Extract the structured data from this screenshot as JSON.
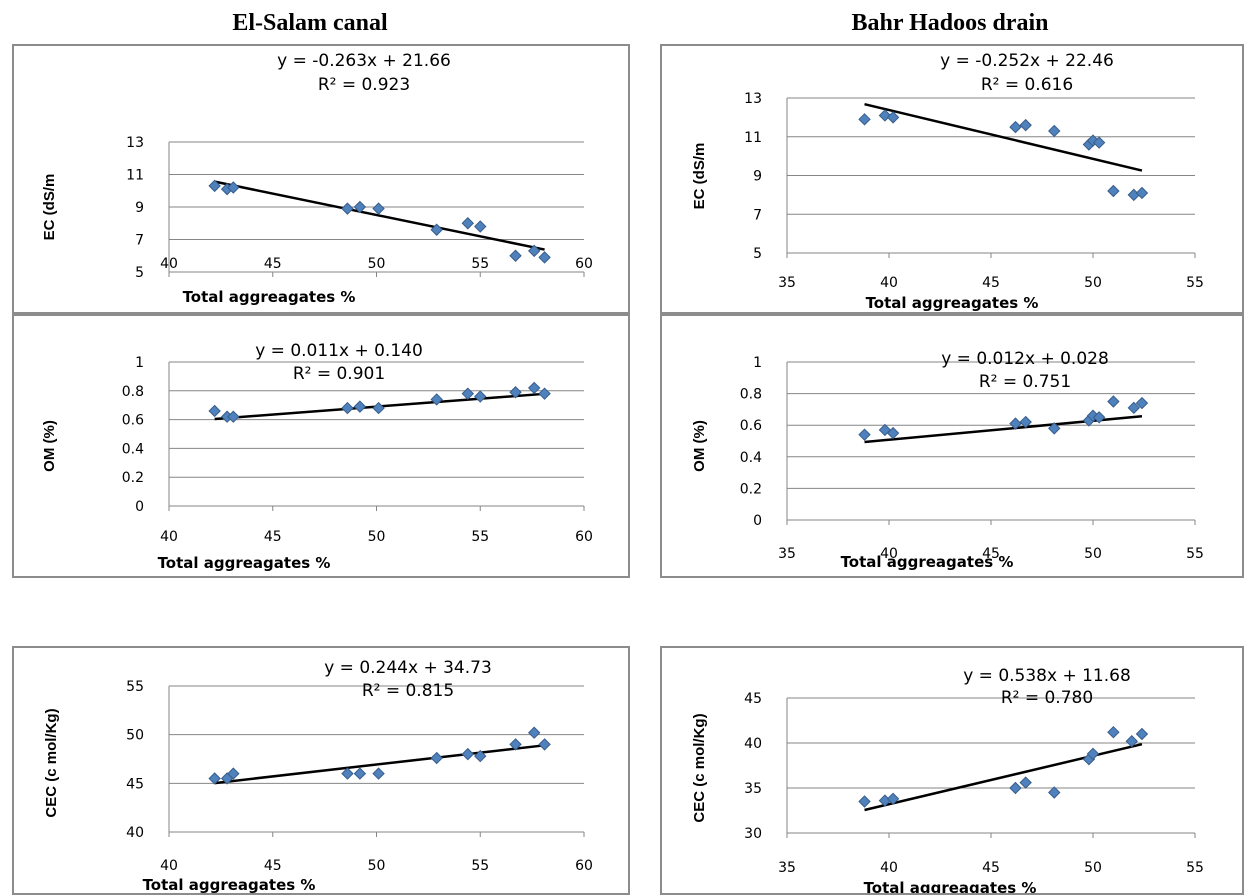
{
  "headers": {
    "left": "El-Salam canal",
    "right": "Bahr Hadoos drain"
  },
  "chart_data": [
    {
      "type": "scatter",
      "title": "",
      "xlabel": "Total aggreagates %",
      "ylabel": "EC (dS/m",
      "equation": "y = -0.263x + 21.66",
      "r2": "R² = 0.923",
      "xlim": [
        40,
        60
      ],
      "xticks": [
        40,
        45,
        50,
        55,
        60
      ],
      "ylim": [
        5,
        13
      ],
      "yticks": [
        5,
        7,
        9,
        11,
        13
      ],
      "x": [
        42.2,
        42.8,
        43.1,
        48.6,
        49.2,
        50.1,
        52.9,
        54.4,
        55.0,
        56.7,
        57.6,
        58.1
      ],
      "y": [
        10.3,
        10.1,
        10.2,
        8.9,
        9.0,
        8.9,
        7.6,
        8.0,
        7.8,
        6.0,
        6.3,
        5.9
      ],
      "trendline": {
        "slope": -0.263,
        "intercept": 21.66,
        "x_range": [
          42.2,
          58.1
        ]
      },
      "grid": true
    },
    {
      "type": "scatter",
      "title": "",
      "xlabel": "Total aggreagates %",
      "ylabel": "EC (dS/m",
      "equation": "y = -0.252x + 22.46",
      "r2": "R² = 0.616",
      "xlim": [
        35,
        55
      ],
      "xticks": [
        35,
        40,
        45,
        50,
        55
      ],
      "ylim": [
        5,
        13
      ],
      "yticks": [
        5,
        7,
        9,
        11,
        13
      ],
      "x": [
        38.8,
        39.8,
        40.2,
        46.2,
        46.7,
        48.1,
        49.8,
        50.0,
        50.3,
        51.0,
        52.0,
        52.4
      ],
      "y": [
        11.9,
        12.1,
        12.0,
        11.5,
        11.6,
        11.3,
        10.6,
        10.8,
        10.7,
        8.2,
        8.0,
        8.1
      ],
      "trendline": {
        "slope": -0.252,
        "intercept": 22.46,
        "x_range": [
          38.8,
          52.4
        ]
      },
      "grid": true
    },
    {
      "type": "scatter",
      "title": "",
      "xlabel": "Total aggreagates %",
      "ylabel": "OM (%)",
      "equation": "y = 0.011x + 0.140",
      "r2": "R² = 0.901",
      "xlim": [
        40,
        60
      ],
      "xticks": [
        40,
        45,
        50,
        55,
        60
      ],
      "ylim": [
        0,
        1
      ],
      "yticks": [
        0,
        0.2,
        0.4,
        0.6,
        0.8,
        1
      ],
      "ytick_labels": [
        "0",
        "0.2",
        "0.4",
        "0.6",
        "0.8",
        "1"
      ],
      "x": [
        42.2,
        42.8,
        43.1,
        48.6,
        49.2,
        50.1,
        52.9,
        54.4,
        55.0,
        56.7,
        57.6,
        58.1
      ],
      "y": [
        0.66,
        0.62,
        0.62,
        0.68,
        0.69,
        0.68,
        0.74,
        0.78,
        0.76,
        0.79,
        0.82,
        0.78
      ],
      "trendline": {
        "slope": 0.011,
        "intercept": 0.14,
        "x_range": [
          42.2,
          58.1
        ]
      },
      "grid": true
    },
    {
      "type": "scatter",
      "title": "",
      "xlabel": "Total aggreagates %",
      "ylabel": "OM (%)",
      "equation": "y = 0.012x + 0.028",
      "r2": "R² = 0.751",
      "xlim": [
        35,
        55
      ],
      "xticks": [
        35,
        40,
        45,
        50,
        55
      ],
      "ylim": [
        0,
        1
      ],
      "yticks": [
        0,
        0.2,
        0.4,
        0.6,
        0.8,
        1
      ],
      "ytick_labels": [
        "0",
        "0.2",
        "0.4",
        "0.6",
        "0.8",
        "1"
      ],
      "x": [
        38.8,
        39.8,
        40.2,
        46.2,
        46.7,
        48.1,
        49.8,
        50.0,
        50.3,
        51.0,
        52.0,
        52.4
      ],
      "y": [
        0.54,
        0.57,
        0.55,
        0.61,
        0.62,
        0.58,
        0.63,
        0.66,
        0.65,
        0.75,
        0.71,
        0.74
      ],
      "trendline": {
        "slope": 0.012,
        "intercept": 0.028,
        "x_range": [
          38.8,
          52.4
        ]
      },
      "grid": true
    },
    {
      "type": "scatter",
      "title": "",
      "xlabel": "Total aggreagates %",
      "ylabel": "CEC (c mol/Kg)",
      "equation": "y = 0.244x + 34.73",
      "r2": "R² = 0.815",
      "xlim": [
        40,
        60
      ],
      "xticks": [
        40,
        45,
        50,
        55,
        60
      ],
      "ylim": [
        40,
        55
      ],
      "yticks": [
        40,
        45,
        50,
        55
      ],
      "x": [
        42.2,
        42.8,
        43.1,
        48.6,
        49.2,
        50.1,
        52.9,
        54.4,
        55.0,
        56.7,
        57.6,
        58.1
      ],
      "y": [
        45.5,
        45.5,
        46.0,
        46.0,
        46.0,
        46.0,
        47.6,
        48.0,
        47.8,
        49.0,
        50.2,
        49.0
      ],
      "trendline": {
        "slope": 0.244,
        "intercept": 34.73,
        "x_range": [
          42.2,
          58.1
        ]
      },
      "grid": true
    },
    {
      "type": "scatter",
      "title": "",
      "xlabel": "Total aggreagates %",
      "ylabel": "CEC (c mol/Kg)",
      "equation": "y = 0.538x + 11.68",
      "r2": "R² = 0.780",
      "xlim": [
        35,
        55
      ],
      "xticks": [
        35,
        40,
        45,
        50,
        55
      ],
      "ylim": [
        30,
        45
      ],
      "yticks": [
        30,
        35,
        40,
        45
      ],
      "x": [
        38.8,
        39.8,
        40.2,
        46.2,
        46.7,
        48.1,
        49.8,
        50.0,
        51.0,
        51.9,
        52.4
      ],
      "y": [
        33.5,
        33.6,
        33.8,
        35.0,
        35.6,
        34.5,
        38.2,
        38.8,
        41.2,
        40.2,
        41.0
      ],
      "trendline": {
        "slope": 0.538,
        "intercept": 11.68,
        "x_range": [
          38.8,
          52.4
        ]
      },
      "grid": true
    }
  ]
}
